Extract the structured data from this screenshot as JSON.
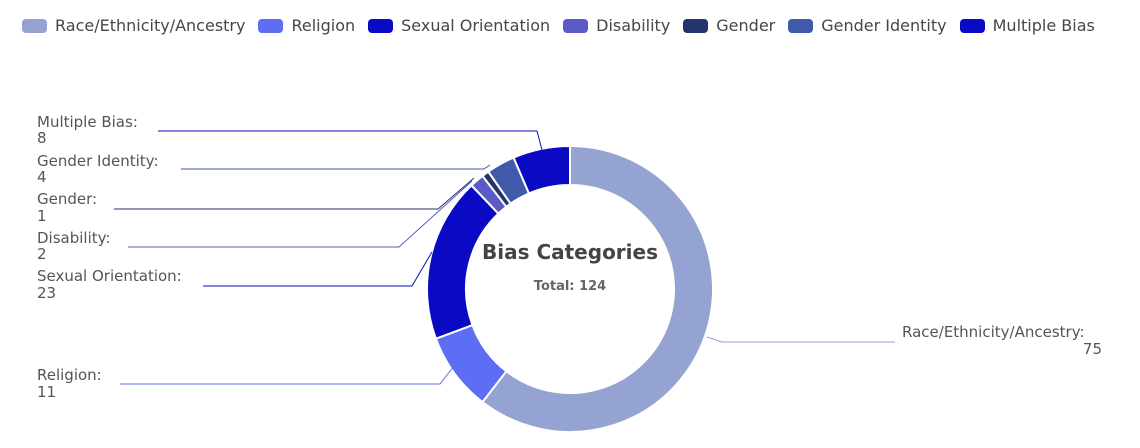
{
  "chart_data": {
    "type": "pie",
    "variant": "donut",
    "title": "Bias Categories",
    "subtitle": "Total: 124",
    "total": 124,
    "legend_position": "top",
    "categories": [
      "Race/Ethnicity/Ancestry",
      "Religion",
      "Sexual Orientation",
      "Disability",
      "Gender",
      "Gender Identity",
      "Multiple Bias"
    ],
    "values": [
      75,
      11,
      23,
      2,
      1,
      4,
      8
    ],
    "colors": [
      "#94a3d2",
      "#5d6ef4",
      "#0a0ac4",
      "#5a5ac8",
      "#24356e",
      "#3e5aa8",
      "#0a0ac4"
    ],
    "labels": [
      {
        "name": "Race/Ethnicity/Ancestry:",
        "value": "75"
      },
      {
        "name": "Religion:",
        "value": "11"
      },
      {
        "name": "Sexual Orientation:",
        "value": "23"
      },
      {
        "name": "Disability:",
        "value": "2"
      },
      {
        "name": "Gender:",
        "value": "1"
      },
      {
        "name": "Gender Identity:",
        "value": "4"
      },
      {
        "name": "Multiple Bias:",
        "value": "8"
      }
    ]
  },
  "legend": {
    "items": [
      {
        "label": "Race/Ethnicity/Ancestry",
        "color": "#94a3d2"
      },
      {
        "label": "Religion",
        "color": "#5d6ef4"
      },
      {
        "label": "Sexual Orientation",
        "color": "#0a0ac4"
      },
      {
        "label": "Disability",
        "color": "#5a5ac8"
      },
      {
        "label": "Gender",
        "color": "#24356e"
      },
      {
        "label": "Gender Identity",
        "color": "#3e5aa8"
      },
      {
        "label": "Multiple Bias",
        "color": "#0a0ac4"
      }
    ]
  },
  "center": {
    "title": "Bias Categories",
    "subtitle": "Total: 124"
  }
}
